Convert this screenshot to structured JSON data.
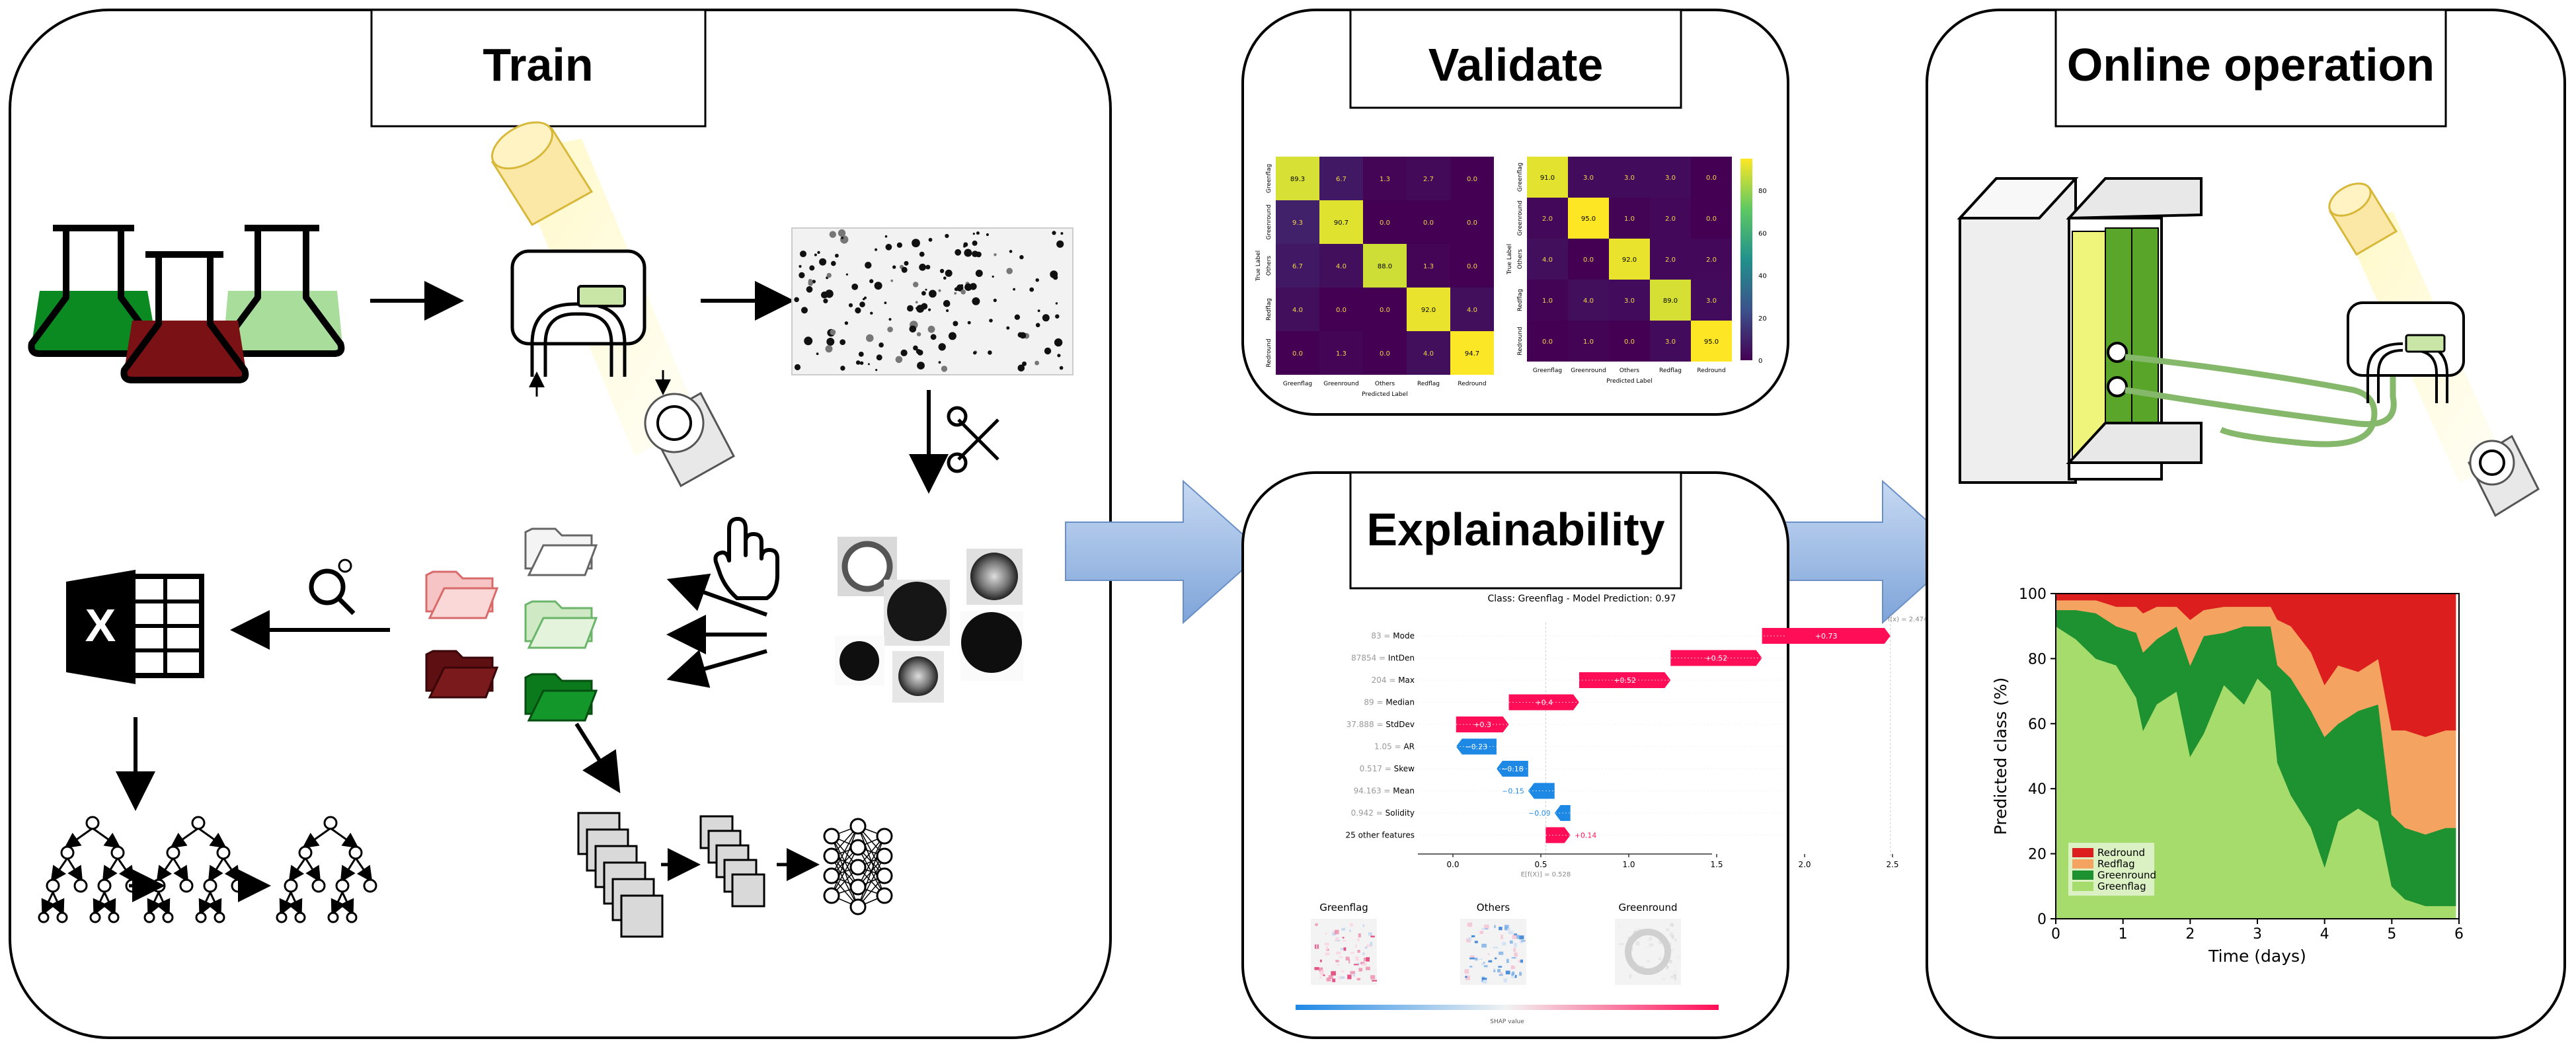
{
  "panels": {
    "train": {
      "title": "Train"
    },
    "validate": {
      "title": "Validate"
    },
    "explainability": {
      "title": "Explainability"
    },
    "online": {
      "title": "Online operation"
    }
  },
  "validate": {
    "classes": [
      "Greenflag",
      "Greenround",
      "Others",
      "Redflag",
      "Redround"
    ],
    "true_label": "True Label",
    "predicted_label": "Predicted Label",
    "matrix_a": [
      [
        "89.3",
        "6.7",
        "1.3",
        "2.7",
        "0.0"
      ],
      [
        "9.3",
        "90.7",
        "0.0",
        "0.0",
        "0.0"
      ],
      [
        "6.7",
        "4.0",
        "88.0",
        "1.3",
        "0.0"
      ],
      [
        "4.0",
        "0.0",
        "0.0",
        "92.0",
        "4.0"
      ],
      [
        "0.0",
        "1.3",
        "0.0",
        "4.0",
        "94.7"
      ]
    ],
    "matrix_b": [
      [
        "91.0",
        "3.0",
        "3.0",
        "3.0",
        "0.0"
      ],
      [
        "2.0",
        "95.0",
        "1.0",
        "2.0",
        "0.0"
      ],
      [
        "4.0",
        "0.0",
        "92.0",
        "2.0",
        "2.0"
      ],
      [
        "1.0",
        "4.0",
        "3.0",
        "89.0",
        "3.0"
      ],
      [
        "0.0",
        "1.0",
        "0.0",
        "3.0",
        "95.0"
      ]
    ],
    "colorbar_ticks": [
      "80",
      "60",
      "40",
      "20",
      "0"
    ]
  },
  "shap": {
    "title": "Class: Greenflag - Model Prediction: 0.97",
    "fx_label": "f(x) = 2.474",
    "ex_label": "E[f(X)] = 0.528",
    "features": [
      {
        "label": "83 = Mode",
        "value": 0.73,
        "text": "+0.73"
      },
      {
        "label": "87854 = IntDen",
        "value": 0.52,
        "text": "+0.52"
      },
      {
        "label": "204 = Max",
        "value": 0.52,
        "text": "+0.52"
      },
      {
        "label": "89 = Median",
        "value": 0.4,
        "text": "+0.4"
      },
      {
        "label": "37.888 = StdDev",
        "value": 0.3,
        "text": "+0.3"
      },
      {
        "label": "1.05 = AR",
        "value": -0.23,
        "text": "−0.23"
      },
      {
        "label": "0.517 = Skew",
        "value": -0.18,
        "text": "−0.18"
      },
      {
        "label": "94.163 = Mean",
        "value": -0.15,
        "text": "−0.15"
      },
      {
        "label": "0.942 = Solidity",
        "value": -0.09,
        "text": "−0.09"
      },
      {
        "label": "25 other features",
        "value": 0.14,
        "text": "+0.14"
      }
    ],
    "base": 0.528,
    "axis_ticks": [
      "0.0",
      "0.5",
      "1.0",
      "1.5",
      "2.0",
      "2.5"
    ],
    "heatmap_labels": [
      "Greenflag",
      "Others",
      "Greenround"
    ],
    "colorbar_label": "SHAP value"
  },
  "chart_data": {
    "type": "area",
    "xlabel": "Time (days)",
    "ylabel": "Predicted class (%)",
    "xlim": [
      0,
      6
    ],
    "ylim": [
      0,
      100
    ],
    "x_ticks": [
      "0",
      "1",
      "2",
      "3",
      "4",
      "5",
      "6"
    ],
    "y_ticks": [
      "0",
      "20",
      "40",
      "60",
      "80",
      "100"
    ],
    "legend_placement": "bottom-left",
    "x": [
      0,
      0.3,
      0.6,
      0.9,
      1.2,
      1.3,
      1.5,
      1.8,
      2.0,
      2.2,
      2.5,
      2.8,
      3.0,
      3.2,
      3.3,
      3.5,
      3.8,
      4.0,
      4.2,
      4.5,
      4.8,
      5.0,
      5.2,
      5.5,
      5.8
    ],
    "series": [
      {
        "name": "Greenflag",
        "color": "#a6dc6c",
        "values": [
          90,
          86,
          80,
          78,
          68,
          58,
          66,
          70,
          50,
          57,
          72,
          66,
          74,
          70,
          48,
          38,
          28,
          16,
          30,
          34,
          30,
          10,
          6,
          4,
          4
        ]
      },
      {
        "name": "Greenround",
        "color": "#1e9130",
        "values": [
          5,
          9,
          14,
          12,
          20,
          24,
          20,
          20,
          28,
          30,
          16,
          24,
          16,
          20,
          30,
          36,
          36,
          40,
          30,
          30,
          36,
          22,
          22,
          22,
          24
        ]
      },
      {
        "name": "Redflag",
        "color": "#f4a460",
        "values": [
          3,
          3,
          4,
          6,
          8,
          12,
          10,
          6,
          14,
          8,
          8,
          6,
          6,
          6,
          14,
          16,
          18,
          16,
          18,
          12,
          14,
          26,
          30,
          30,
          30
        ]
      },
      {
        "name": "Redround",
        "color": "#dc1e1e",
        "values": [
          2,
          2,
          2,
          4,
          4,
          6,
          4,
          4,
          8,
          5,
          4,
          4,
          4,
          4,
          8,
          10,
          18,
          28,
          22,
          24,
          20,
          42,
          42,
          44,
          42
        ]
      }
    ]
  }
}
